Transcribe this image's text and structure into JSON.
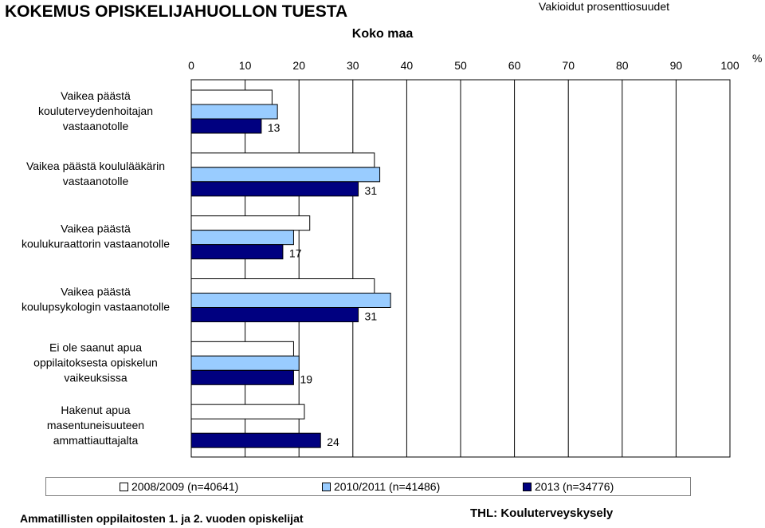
{
  "header": {
    "title": "KOKEMUS OPISKELIJAHUOLLON TUESTA",
    "subtitle": "Koko maa",
    "measure": "Vakioidut prosenttiosuudet"
  },
  "chart_data": {
    "type": "bar",
    "orientation": "horizontal",
    "title": "KOKEMUS OPISKELIJAHUOLLON TUESTA",
    "subtitle": "Koko maa",
    "unit": "%",
    "xlim": [
      0,
      100
    ],
    "xticks": [
      0,
      10,
      20,
      30,
      40,
      50,
      60,
      70,
      80,
      90,
      100
    ],
    "grid": true,
    "legend_position": "bottom",
    "categories": [
      [
        "Vaikea päästä",
        "kouluterveydenhoitajan",
        "vastaanotolle"
      ],
      [
        "Vaikea päästä koululääkärin",
        "vastaanotolle"
      ],
      [
        "Vaikea päästä",
        "koulukuraattorin vastaanotolle"
      ],
      [
        "Vaikea päästä",
        "koulupsykologin vastaanotolle"
      ],
      [
        "Ei ole saanut apua",
        "oppilaitoksesta opiskelun",
        "vaikeuksissa"
      ],
      [
        "Hakenut apua",
        "masentuneisuuteen",
        "ammattiauttajalta"
      ]
    ],
    "series": [
      {
        "name": "2008/2009 (n=40641)",
        "color": "#ffffff",
        "values": [
          15,
          34,
          22,
          34,
          19,
          21
        ]
      },
      {
        "name": "2010/2011 (n=41486)",
        "color": "#99ccff",
        "values": [
          16,
          35,
          19,
          37,
          20,
          null
        ]
      },
      {
        "name": "2013 (n=34776)",
        "color": "#000080",
        "values": [
          13,
          31,
          17,
          31,
          19,
          24
        ]
      }
    ],
    "data_labels": {
      "series": "2013 (n=34776)",
      "values": [
        "13",
        "31",
        "17",
        "31",
        "19",
        "24"
      ]
    }
  },
  "legend": {
    "items": [
      {
        "label": "2008/2009 (n=40641)",
        "color": "#ffffff"
      },
      {
        "label": "2010/2011 (n=41486)",
        "color": "#99ccff"
      },
      {
        "label": "2013 (n=34776)",
        "color": "#000080"
      }
    ]
  },
  "footer": {
    "left": "Ammatillisten oppilaitosten 1. ja 2. vuoden opiskelijat",
    "right": "THL: Kouluterveyskysely"
  }
}
